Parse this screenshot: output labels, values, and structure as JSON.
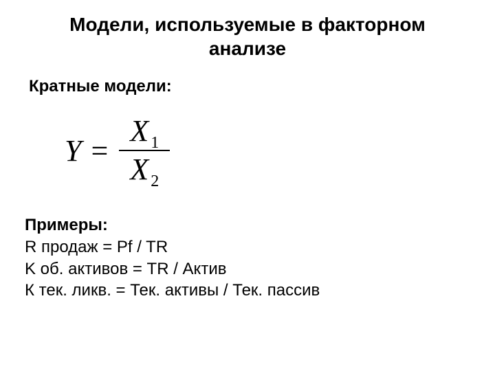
{
  "title": "Модели, используемые в факторном анализе",
  "subtitle": "Кратные модели:",
  "formula": {
    "lhs": "Y",
    "eq": "=",
    "numerator_var": "X",
    "numerator_sub": "1",
    "denominator_var": "X",
    "denominator_sub": "2"
  },
  "examples_heading": "Примеры:",
  "examples": [
    "R продаж = Pf / TR",
    "K об. активов = TR / Актив",
    "К тек. ликв. = Тек. активы / Тек. пассив"
  ],
  "colors": {
    "background": "#ffffff",
    "text": "#000000"
  },
  "fonts": {
    "body_family": "Arial",
    "formula_family": "Times New Roman",
    "title_size_pt": 21,
    "subtitle_size_pt": 18,
    "formula_size_pt": 33,
    "example_size_pt": 18
  }
}
